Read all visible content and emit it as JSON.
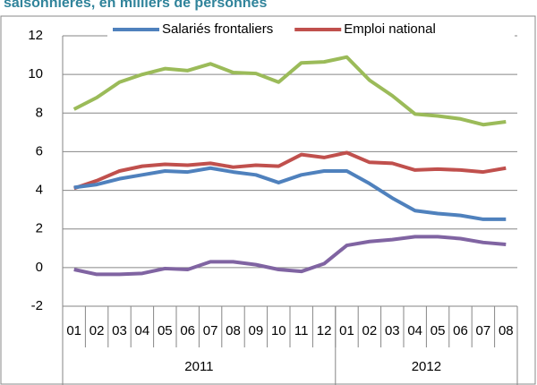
{
  "chart_data": {
    "type": "line",
    "title": "saisonnières, en milliers de personnes",
    "categories": [
      "01",
      "02",
      "03",
      "04",
      "05",
      "06",
      "07",
      "08",
      "09",
      "10",
      "11",
      "12",
      "01",
      "02",
      "03",
      "04",
      "05",
      "06",
      "07",
      "08"
    ],
    "groups": [
      "2011",
      "2012"
    ],
    "series": [
      {
        "color": "#9bbb59",
        "values": [
          8.2,
          8.8,
          9.6,
          10.0,
          10.3,
          10.2,
          10.55,
          10.1,
          10.05,
          9.6,
          10.6,
          10.65,
          10.9,
          9.7,
          8.9,
          7.95,
          7.85,
          7.7,
          7.4,
          7.55
        ]
      },
      {
        "name": "Emploi national",
        "color": "#c0504d",
        "values": [
          4.1,
          4.5,
          5.0,
          5.25,
          5.35,
          5.3,
          5.4,
          5.2,
          5.3,
          5.25,
          5.85,
          5.7,
          5.95,
          5.45,
          5.4,
          5.05,
          5.1,
          5.05,
          4.95,
          5.15
        ]
      },
      {
        "name": "Salariés frontaliers",
        "color": "#4f81bd",
        "values": [
          4.15,
          4.3,
          4.6,
          4.8,
          5.0,
          4.95,
          5.15,
          4.95,
          4.8,
          4.4,
          4.8,
          5.0,
          5.0,
          4.35,
          3.6,
          2.95,
          2.8,
          2.7,
          2.5,
          2.5
        ]
      },
      {
        "color": "#8064a2",
        "values": [
          -0.1,
          -0.35,
          -0.35,
          -0.3,
          -0.05,
          -0.1,
          0.3,
          0.3,
          0.15,
          -0.1,
          -0.2,
          0.2,
          1.15,
          1.35,
          1.45,
          1.6,
          1.6,
          1.5,
          1.3,
          1.2
        ]
      }
    ],
    "legend_order": [
      "Salariés frontaliers",
      "Emploi national"
    ],
    "ylim": [
      -2,
      12
    ],
    "yticks": [
      -2,
      0,
      2,
      4,
      6,
      8,
      10,
      12
    ],
    "grid": true,
    "legend": "top"
  }
}
